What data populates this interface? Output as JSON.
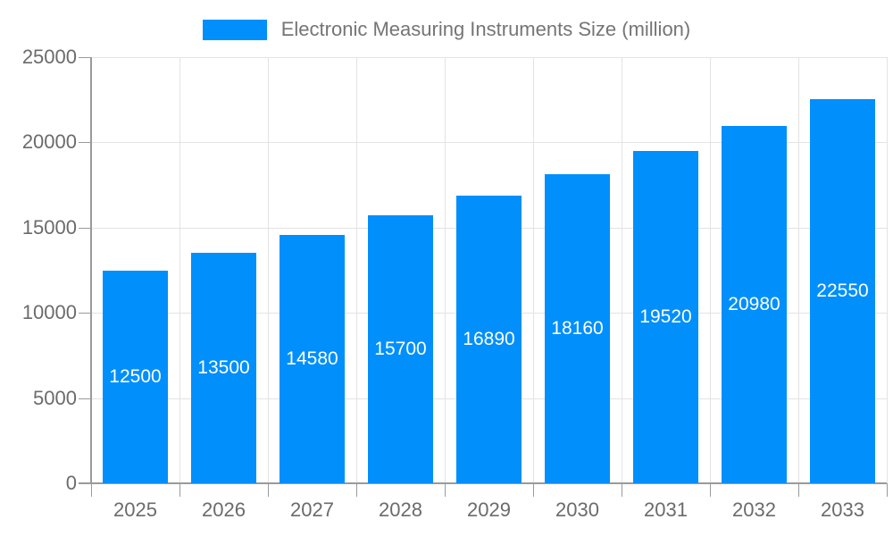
{
  "chart_data": {
    "type": "bar",
    "title": "Electronic Measuring Instruments Size (million)",
    "categories": [
      "2025",
      "2026",
      "2027",
      "2028",
      "2029",
      "2030",
      "2031",
      "2032",
      "2033"
    ],
    "values": [
      12500,
      13500,
      14580,
      15700,
      16890,
      18160,
      19520,
      20980,
      22550
    ],
    "value_labels": [
      "12500",
      "13500",
      "14580",
      "15700",
      "16890",
      "18160",
      "19520",
      "20980",
      "22550"
    ],
    "xlabel": "",
    "ylabel": "",
    "ylim": [
      0,
      25000
    ],
    "ytick_step": 5000,
    "ytick_labels": [
      "0",
      "5000",
      "10000",
      "15000",
      "20000",
      "25000"
    ],
    "grid": true,
    "legend_position": "top",
    "colors": {
      "bar": "#008ffb",
      "value_label_text": "#ffffff",
      "axis_line": "#9a9a9a",
      "gridline": "#e3e3e3",
      "tick_label_text": "#6b6b6b",
      "legend_text": "#757575",
      "background": "#ffffff"
    }
  }
}
